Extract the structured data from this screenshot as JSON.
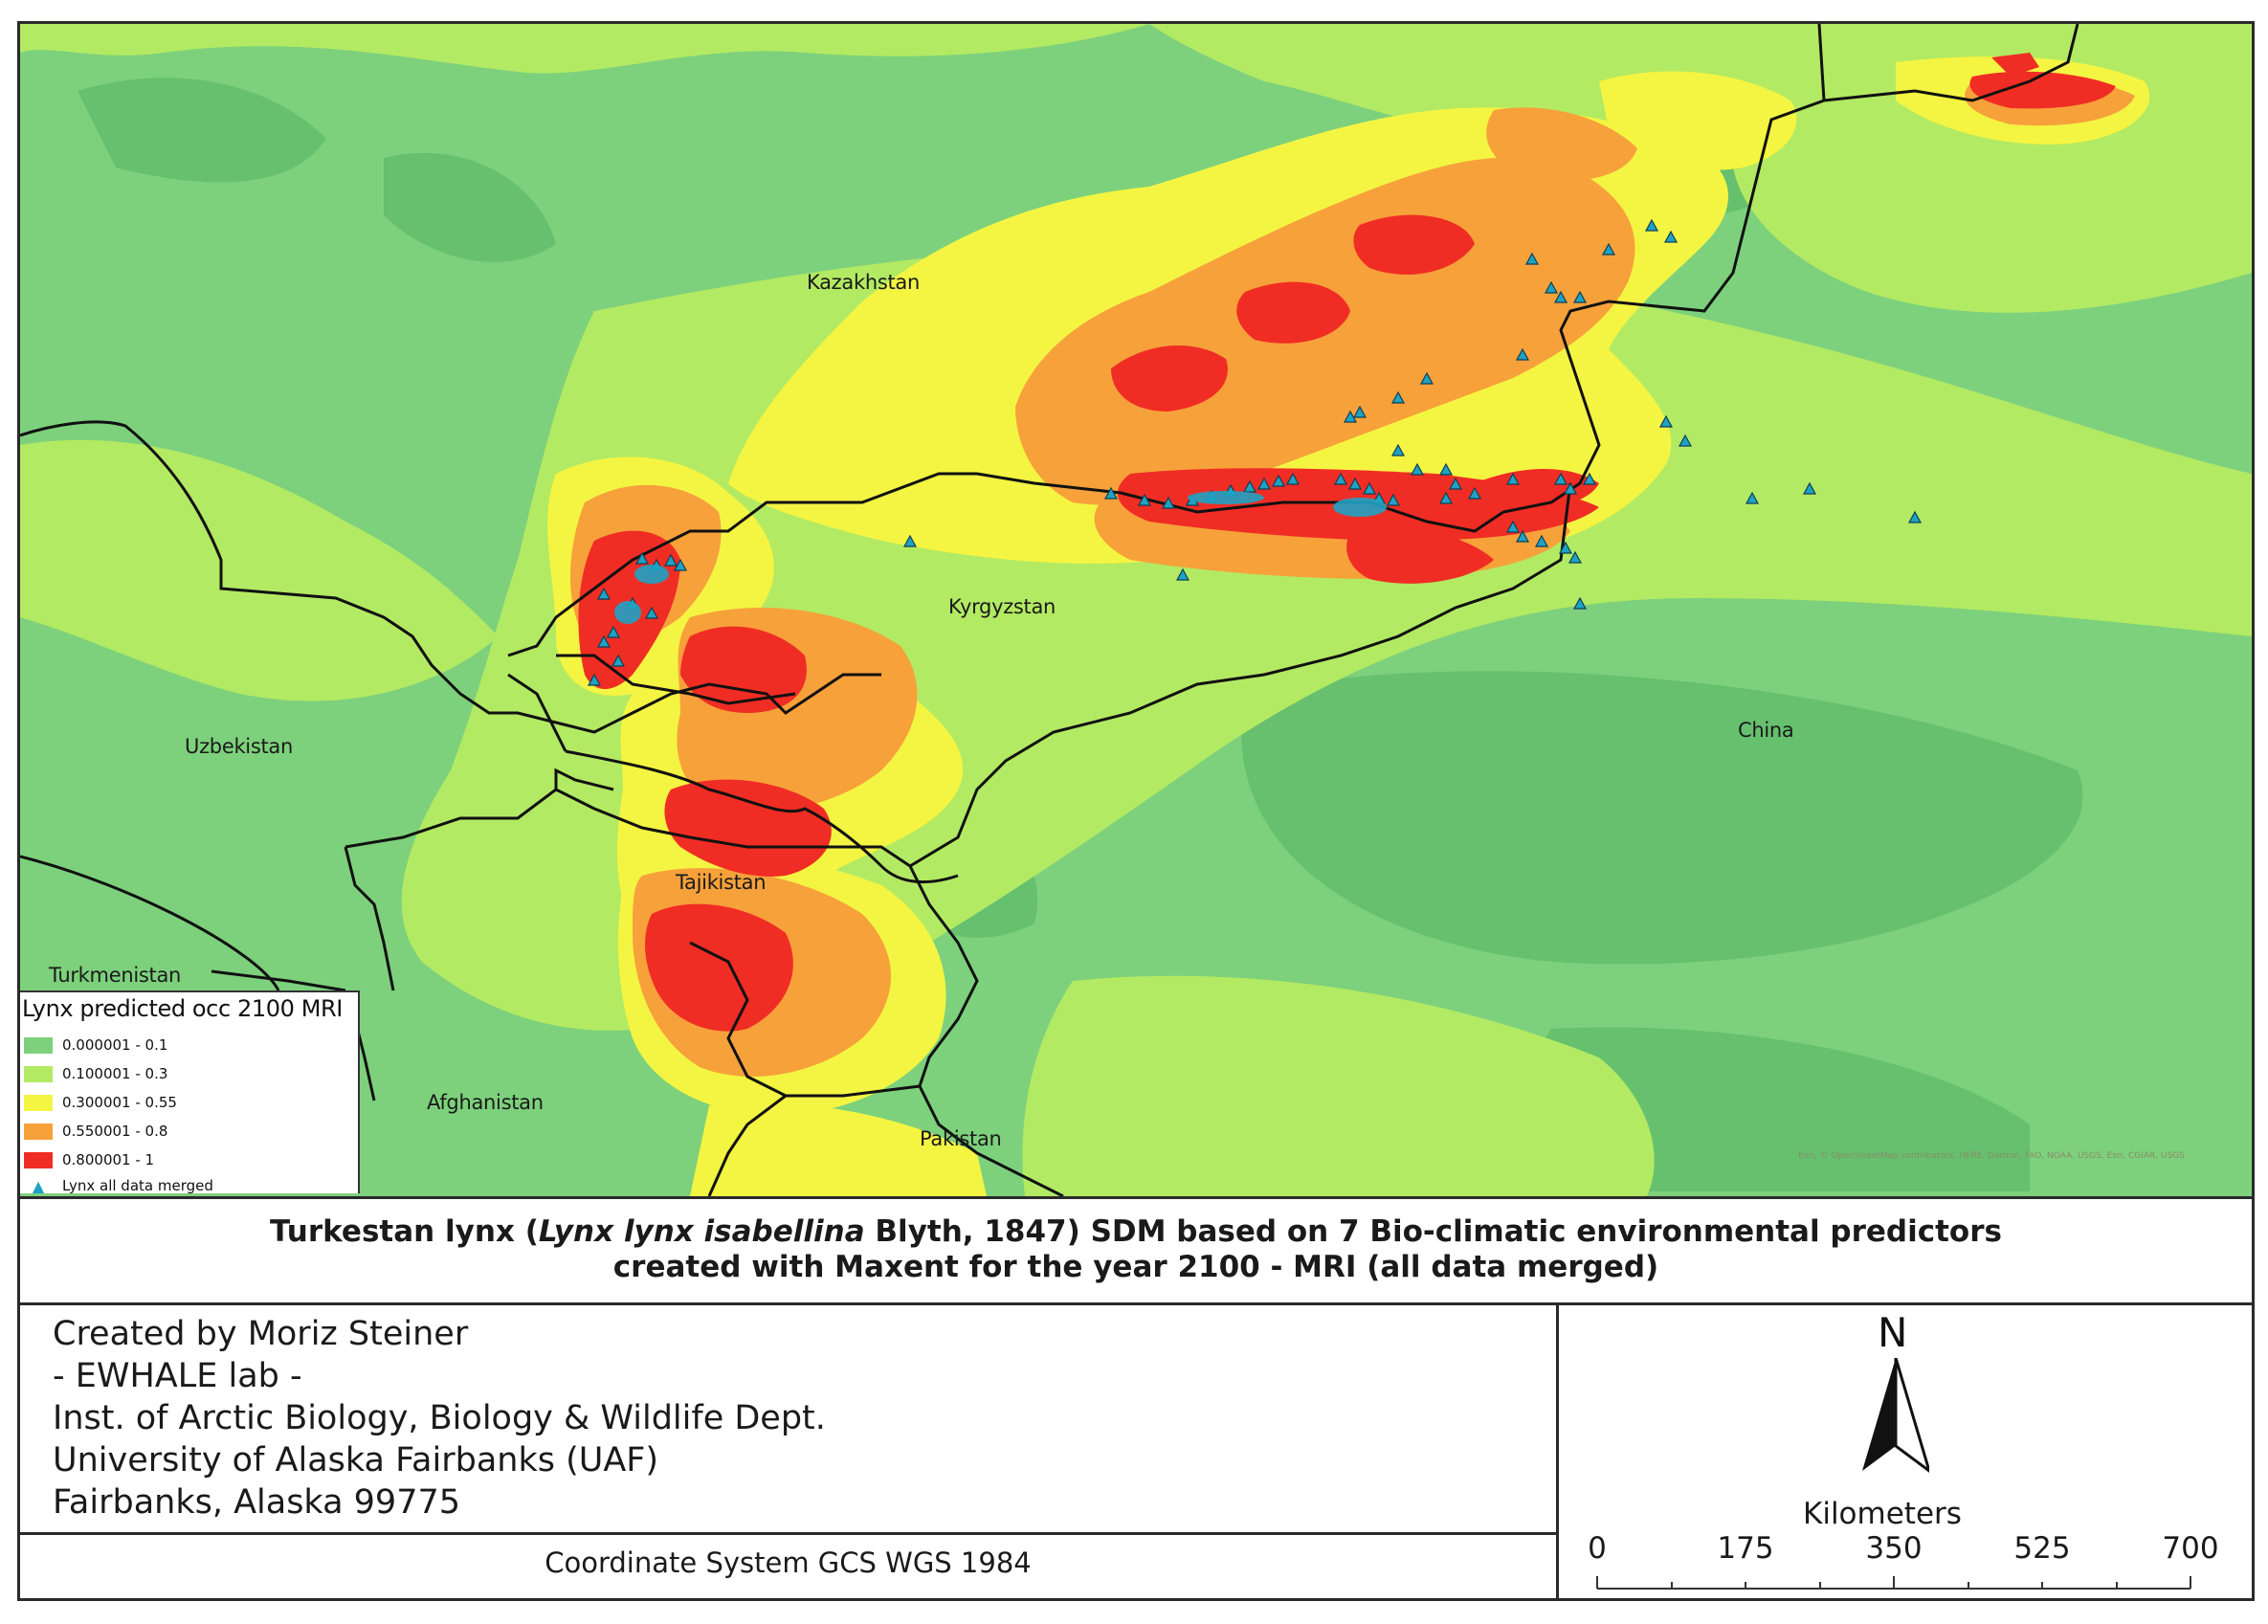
{
  "countries": [
    {
      "name": "Kazakhstan"
    },
    {
      "name": "Kyrgyzstan"
    },
    {
      "name": "Uzbekistan"
    },
    {
      "name": "China"
    },
    {
      "name": "Tajikistan"
    },
    {
      "name": "Turkmenistan"
    },
    {
      "name": "Afghanistan"
    },
    {
      "name": "Pakistan"
    }
  ],
  "legend": {
    "title": "Lynx predicted occ 2100 MRI",
    "classes": [
      {
        "label": "0.000001 - 0.1",
        "color": "#7dd17c"
      },
      {
        "label": "0.100001 - 0.3",
        "color": "#b3ea63"
      },
      {
        "label": "0.300001 - 0.55",
        "color": "#f4f542"
      },
      {
        "label": "0.550001 - 0.8",
        "color": "#f7a13b"
      },
      {
        "label": "0.800001 - 1",
        "color": "#f02d24"
      }
    ],
    "points_label": "Lynx all data merged",
    "points_color": "#1fa2c4"
  },
  "attribution": "Esri, © OpenStreetMap contributors, HERE, Garmin, FAO, NOAA, USGS, Esri, CGIAR, USGS",
  "title": {
    "common_name": "Turkestan lynx (",
    "scientific_name": "Lynx lynx isabellina",
    "rest_line1": " Blyth, 1847) SDM based on 7 Bio-climatic environmental predictors",
    "line2": "created with Maxent for the year 2100 - MRI (all data merged)"
  },
  "credits": [
    "Created by Moriz Steiner",
    "- EWHALE lab -",
    "Inst. of Arctic Biology,  Biology & Wildlife Dept.",
    "University of Alaska Fairbanks (UAF)",
    "Fairbanks, Alaska 99775"
  ],
  "coordinate_system": "Coordinate System GCS WGS 1984",
  "north_arrow": "N",
  "scale_bar": {
    "unit": "Kilometers",
    "ticks": [
      "0",
      "175",
      "350",
      "525",
      "700"
    ]
  }
}
